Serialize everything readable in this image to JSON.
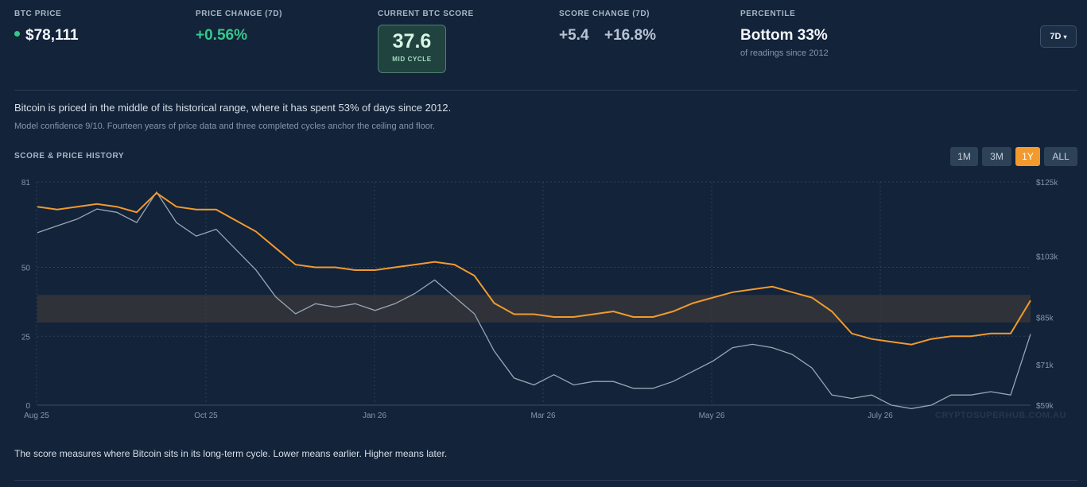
{
  "stats": {
    "btc_price": {
      "label": "BTC PRICE",
      "value": "$78,111"
    },
    "price_change": {
      "label": "PRICE CHANGE (7D)",
      "value": "+0.56%"
    },
    "score": {
      "label": "CURRENT BTC SCORE",
      "value": "37.6",
      "badge": "MID CYCLE"
    },
    "score_change": {
      "label": "SCORE CHANGE (7D)",
      "abs": "+5.4",
      "pct": "+16.8%"
    },
    "percentile": {
      "label": "PERCENTILE",
      "value": "Bottom 33%",
      "sub": "of readings since 2012"
    }
  },
  "range_select": {
    "value": "7D",
    "caret": "▾"
  },
  "description": "Bitcoin is priced in the middle of its historical range, where it has spent 53% of days since 2012.",
  "confidence": "Model confidence 9/10. Fourteen years of price data and three completed cycles anchor the ceiling and floor.",
  "chart_section_title": "SCORE & PRICE HISTORY",
  "timeframes": [
    {
      "label": "1M",
      "active": false
    },
    {
      "label": "3M",
      "active": false
    },
    {
      "label": "1Y",
      "active": true
    },
    {
      "label": "ALL",
      "active": false
    }
  ],
  "watermark": "CRYPTOSUPERHUB.COM.AU",
  "footer": "The score measures where Bitcoin sits in its long-term cycle. Lower means earlier. Higher means later.",
  "colors": {
    "score_line": "#f29a2e",
    "price_line": "#9aa6b4",
    "band": "#3a3a3a",
    "accent_green": "#34c98a"
  },
  "chart_data": {
    "type": "line",
    "x_tick_labels": [
      "Aug 25",
      "Oct 25",
      "Jan 26",
      "Mar 26",
      "May 26",
      "July 26"
    ],
    "y_left": {
      "ticks": [
        0,
        25,
        50,
        81
      ],
      "range": [
        0,
        81
      ]
    },
    "y_right": {
      "ticks": [
        "$59k",
        "$71k",
        "$85k",
        "$103k",
        "$125k"
      ],
      "range_k": [
        59,
        125
      ]
    },
    "band": [
      30,
      40
    ],
    "series": [
      {
        "role": "score",
        "x": [
          0,
          0.02,
          0.04,
          0.06,
          0.08,
          0.1,
          0.12,
          0.14,
          0.16,
          0.18,
          0.2,
          0.22,
          0.24,
          0.26,
          0.28,
          0.3,
          0.32,
          0.34,
          0.36,
          0.38,
          0.4,
          0.42,
          0.44,
          0.46,
          0.48,
          0.5,
          0.52,
          0.54,
          0.56,
          0.58,
          0.6,
          0.62,
          0.64,
          0.66,
          0.68,
          0.7,
          0.72,
          0.74,
          0.76,
          0.78,
          0.8,
          0.82,
          0.84,
          0.86,
          0.88,
          0.9,
          0.92,
          0.94,
          0.96,
          0.98,
          1.0
        ],
        "values": [
          72,
          71,
          72,
          73,
          72,
          70,
          77,
          72,
          71,
          71,
          67,
          63,
          57,
          51,
          50,
          50,
          49,
          49,
          50,
          51,
          52,
          51,
          47,
          37,
          33,
          33,
          32,
          32,
          33,
          34,
          32,
          32,
          34,
          37,
          39,
          41,
          42,
          43,
          41,
          39,
          34,
          26,
          24,
          23,
          22,
          24,
          25,
          25,
          26,
          26,
          38
        ]
      },
      {
        "role": "price",
        "x": [
          0,
          0.02,
          0.04,
          0.06,
          0.08,
          0.1,
          0.12,
          0.14,
          0.16,
          0.18,
          0.2,
          0.22,
          0.24,
          0.26,
          0.28,
          0.3,
          0.32,
          0.34,
          0.36,
          0.38,
          0.4,
          0.42,
          0.44,
          0.46,
          0.48,
          0.5,
          0.52,
          0.54,
          0.56,
          0.58,
          0.6,
          0.62,
          0.64,
          0.66,
          0.68,
          0.7,
          0.72,
          0.74,
          0.76,
          0.78,
          0.8,
          0.82,
          0.84,
          0.86,
          0.88,
          0.9,
          0.92,
          0.94,
          0.96,
          0.98,
          1.0
        ],
        "values": [
          110,
          112,
          114,
          117,
          116,
          113,
          122,
          113,
          109,
          111,
          105,
          99,
          91,
          86,
          89,
          88,
          89,
          87,
          89,
          92,
          96,
          91,
          86,
          75,
          67,
          65,
          68,
          65,
          66,
          66,
          64,
          64,
          66,
          69,
          72,
          76,
          77,
          76,
          74,
          70,
          62,
          61,
          62,
          59,
          58,
          59,
          62,
          62,
          63,
          62,
          80
        ]
      }
    ]
  }
}
